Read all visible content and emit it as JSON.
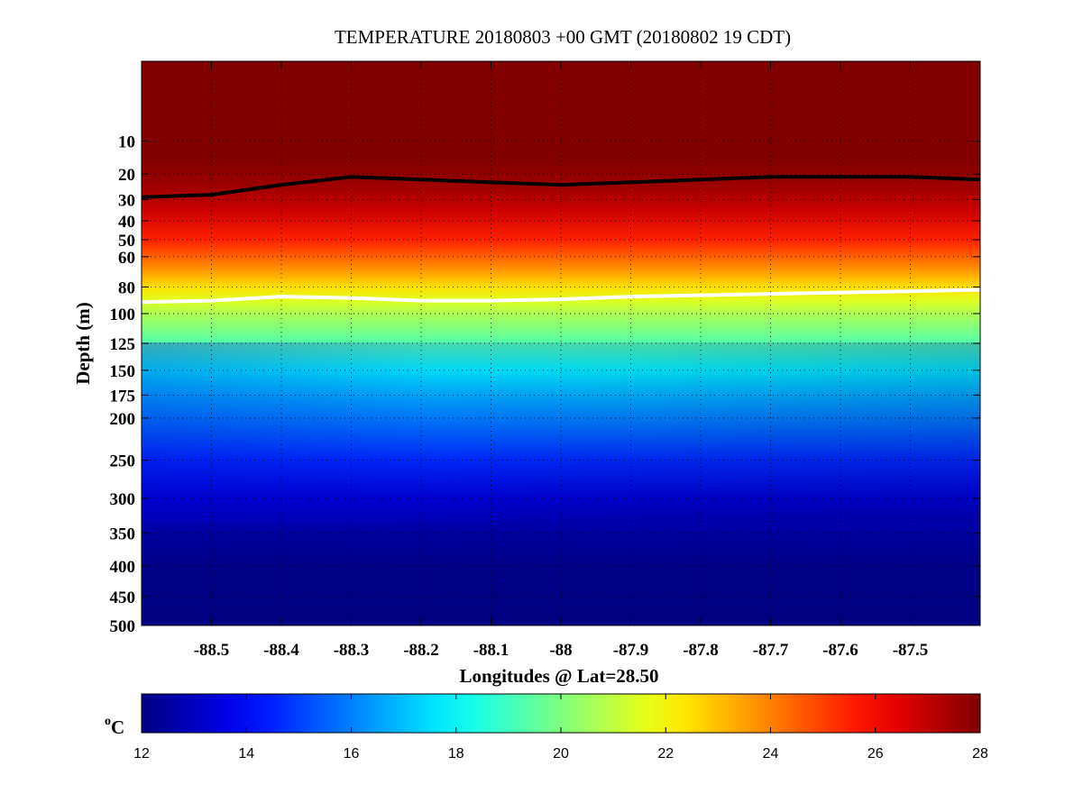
{
  "chart_data": {
    "type": "heatmap",
    "title": "TEMPERATURE 20180803 +00 GMT (20180802 19 CDT)",
    "xlabel": "Longitudes @ Lat=28.50",
    "ylabel": "Depth (m)",
    "xlim": [
      -88.6,
      -87.4
    ],
    "ylim": [
      500,
      0
    ],
    "y_scale": "square-root",
    "x_ticks": [
      -88.5,
      -88.4,
      -88.3,
      -88.2,
      -88.1,
      -88,
      -87.9,
      -87.8,
      -87.7,
      -87.6,
      -87.5
    ],
    "x_tick_labels": [
      "-88.5",
      "-88.4",
      "-88.3",
      "-88.2",
      "-88.1",
      "-88",
      "-87.9",
      "-87.8",
      "-87.7",
      "-87.6",
      "-87.5"
    ],
    "y_ticks": [
      10,
      20,
      30,
      40,
      50,
      60,
      80,
      100,
      125,
      150,
      175,
      200,
      250,
      300,
      350,
      400,
      450,
      500
    ],
    "y_tick_labels": [
      "10",
      "20",
      "30",
      "40",
      "50",
      "60",
      "80",
      "100",
      "125",
      "150",
      "175",
      "200",
      "250",
      "300",
      "350",
      "400",
      "450",
      "500"
    ],
    "grid": true,
    "colormap": "jet",
    "colorbar": {
      "range": [
        12,
        28
      ],
      "ticks": [
        12,
        14,
        16,
        18,
        20,
        22,
        24,
        26,
        28
      ],
      "tick_labels": [
        "12",
        "14",
        "16",
        "18",
        "20",
        "22",
        "24",
        "26",
        "28"
      ],
      "unit_base": "C",
      "unit_sup": "o"
    },
    "temperature_profile": {
      "depths": [
        0,
        15,
        25,
        35,
        50,
        65,
        80,
        90,
        100,
        125,
        150,
        175,
        200,
        250,
        300,
        350,
        400,
        500
      ],
      "temperatures": [
        28,
        28,
        27.5,
        26.8,
        25.5,
        24,
        22.5,
        21.5,
        20.7,
        19.3,
        18,
        17,
        16.2,
        14.7,
        13.3,
        12.5,
        12.1,
        12
      ]
    },
    "contours": [
      {
        "color": "#000000",
        "x": [
          -88.6,
          -88.5,
          -88.4,
          -88.3,
          -88.2,
          -88.1,
          -88.0,
          -87.9,
          -87.8,
          -87.7,
          -87.6,
          -87.5,
          -87.4
        ],
        "depth": [
          29,
          28,
          24,
          21,
          22,
          23,
          24,
          23,
          22,
          21,
          21,
          21,
          22
        ]
      },
      {
        "color": "#ffffff",
        "x": [
          -88.6,
          -88.5,
          -88.4,
          -88.3,
          -88.2,
          -88.1,
          -88.0,
          -87.9,
          -87.8,
          -87.7,
          -87.6,
          -87.5,
          -87.4
        ],
        "depth": [
          91,
          90,
          87,
          88,
          90,
          90,
          89,
          87,
          86,
          85,
          84,
          83,
          82
        ]
      }
    ]
  }
}
